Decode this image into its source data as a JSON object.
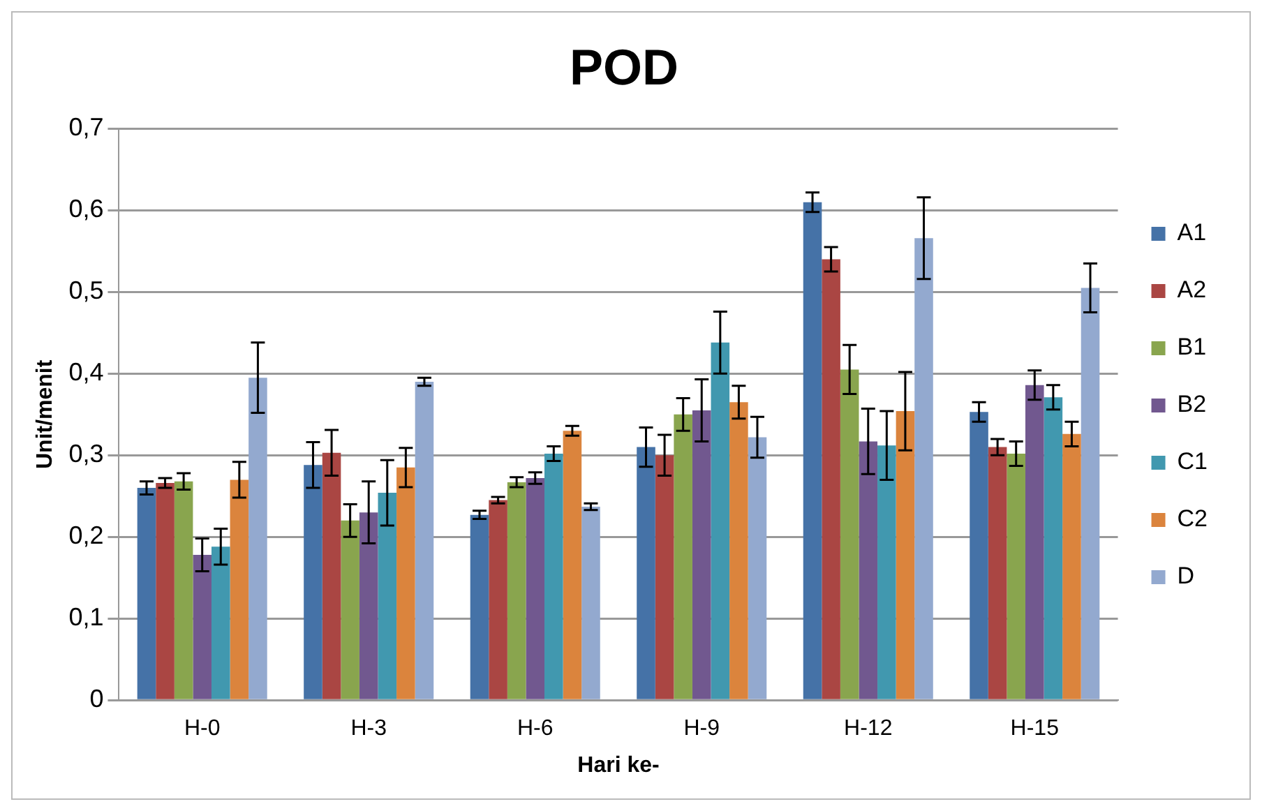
{
  "chart_data": {
    "type": "bar",
    "title": "POD",
    "xlabel": "Hari ke-",
    "ylabel": "Unit/menit",
    "categories": [
      "H-0",
      "H-3",
      "H-6",
      "H-9",
      "H-12",
      "H-15"
    ],
    "series": [
      {
        "name": "A1",
        "color": "#4572a7",
        "values": [
          0.26,
          0.288,
          0.227,
          0.31,
          0.61,
          0.353
        ],
        "errors": [
          0.008,
          0.028,
          0.005,
          0.024,
          0.012,
          0.012
        ]
      },
      {
        "name": "A2",
        "color": "#aa4643",
        "values": [
          0.266,
          0.303,
          0.245,
          0.3,
          0.54,
          0.31
        ],
        "errors": [
          0.006,
          0.028,
          0.004,
          0.025,
          0.015,
          0.01
        ]
      },
      {
        "name": "B1",
        "color": "#89a54e",
        "values": [
          0.268,
          0.22,
          0.267,
          0.35,
          0.405,
          0.302
        ],
        "errors": [
          0.01,
          0.02,
          0.006,
          0.02,
          0.03,
          0.015
        ]
      },
      {
        "name": "B2",
        "color": "#71588f",
        "values": [
          0.178,
          0.23,
          0.272,
          0.355,
          0.317,
          0.386
        ],
        "errors": [
          0.02,
          0.038,
          0.007,
          0.038,
          0.04,
          0.018
        ]
      },
      {
        "name": "C1",
        "color": "#4198af",
        "values": [
          0.188,
          0.254,
          0.302,
          0.438,
          0.312,
          0.371
        ],
        "errors": [
          0.022,
          0.04,
          0.009,
          0.038,
          0.042,
          0.015
        ]
      },
      {
        "name": "C2",
        "color": "#db843d",
        "values": [
          0.27,
          0.285,
          0.33,
          0.365,
          0.354,
          0.326
        ],
        "errors": [
          0.022,
          0.024,
          0.006,
          0.02,
          0.048,
          0.015
        ]
      },
      {
        "name": "D",
        "color": "#93a9cf",
        "values": [
          0.395,
          0.39,
          0.237,
          0.322,
          0.566,
          0.505
        ],
        "errors": [
          0.043,
          0.005,
          0.004,
          0.025,
          0.05,
          0.03
        ]
      }
    ],
    "ylim": [
      0,
      0.7
    ],
    "yticks": [
      0,
      {
        "value": 0.1,
        "label": "0,1"
      },
      {
        "value": 0.2,
        "label": "0,2"
      },
      {
        "value": 0.3,
        "label": "0,3"
      },
      {
        "value": 0.4,
        "label": "0,4"
      },
      {
        "value": 0.5,
        "label": "0,5"
      },
      {
        "value": 0.6,
        "label": "0,6"
      },
      {
        "value": 0.7,
        "label": "0,7"
      }
    ],
    "grid": "y",
    "legend": "right"
  }
}
